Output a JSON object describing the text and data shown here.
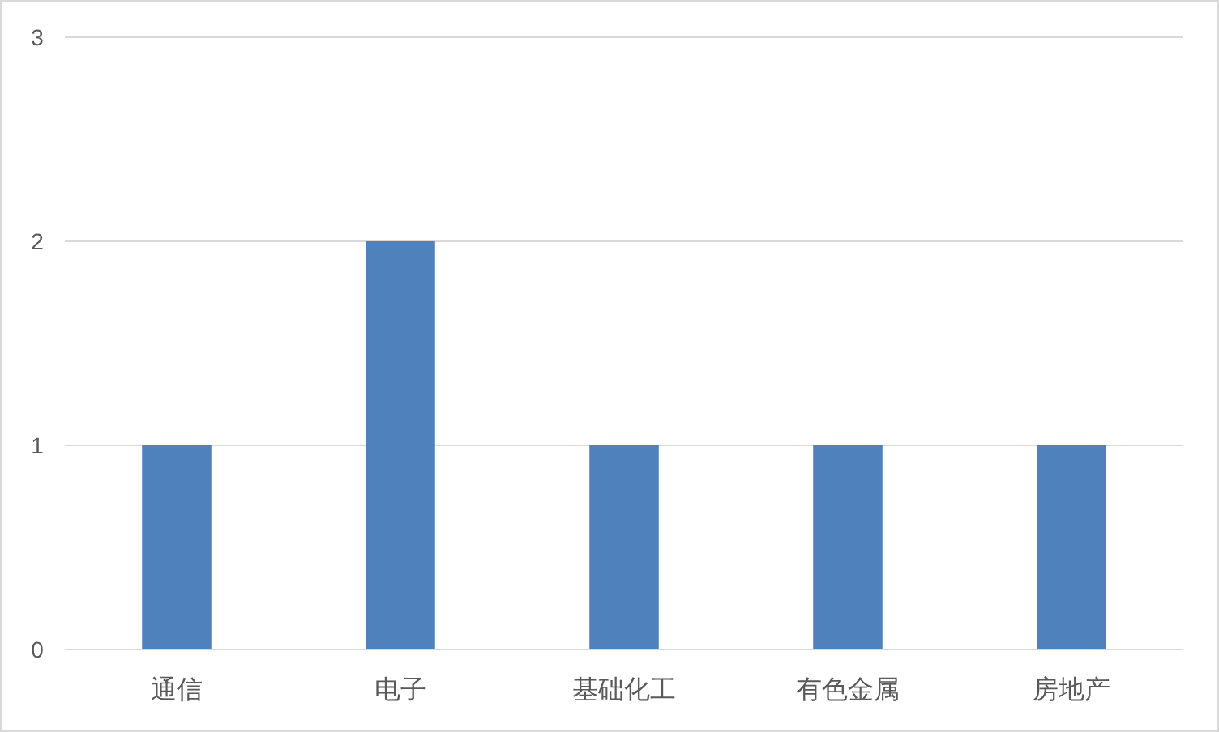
{
  "chart_data": {
    "type": "bar",
    "categories": [
      "通信",
      "电子",
      "基础化工",
      "有色金属",
      "房地产"
    ],
    "values": [
      1,
      2,
      1,
      1,
      1
    ],
    "color": "#4f81bd",
    "ylim": [
      0,
      3
    ],
    "yticks": [
      0,
      1,
      2,
      3
    ],
    "grid": "y"
  }
}
